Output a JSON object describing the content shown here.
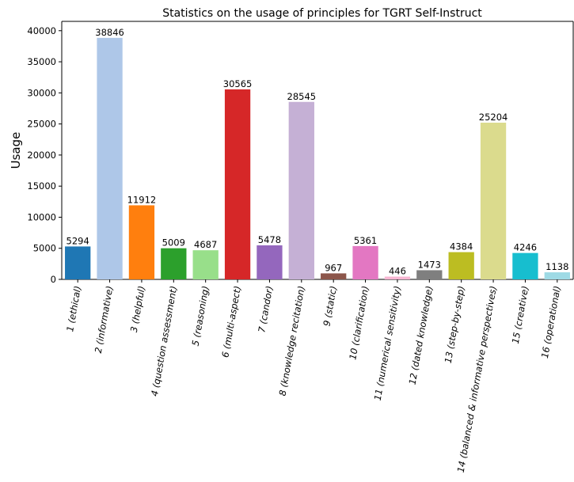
{
  "chart_data": {
    "type": "bar",
    "title": "Statistics on the usage of principles for TGRT Self-Instruct",
    "xlabel": "",
    "ylabel": "Usage",
    "ylim": [
      0,
      41500
    ],
    "yticks": [
      0,
      5000,
      10000,
      15000,
      20000,
      25000,
      30000,
      35000,
      40000
    ],
    "grid": false,
    "legend": "none",
    "categories": [
      "1 (ethical)",
      "2 (informative)",
      "3 (helpful)",
      "4 (question assessment)",
      "5 (reasoning)",
      "6 (multi-aspect)",
      "7 (candor)",
      "8 (knowledge recitation)",
      "9 (static)",
      "10 (clarification)",
      "11 (numerical sensitivity)",
      "12 (dated knowledge)",
      "13 (step-by-step)",
      "14 (balanced & informative perspectives)",
      "15 (creative)",
      "16 (operational)"
    ],
    "values": [
      5294,
      38846,
      11912,
      5009,
      4687,
      30565,
      5478,
      28545,
      967,
      5361,
      446,
      1473,
      4384,
      25204,
      4246,
      1138
    ],
    "colors": [
      "#1f77b4",
      "#aec7e8",
      "#ff7f0e",
      "#2ca02c",
      "#98df8a",
      "#d62728",
      "#9467bd",
      "#c5b0d5",
      "#8c564b",
      "#e377c2",
      "#f7b6d2",
      "#7f7f7f",
      "#bcbd22",
      "#dbdb8d",
      "#17becf",
      "#9edae5"
    ]
  }
}
